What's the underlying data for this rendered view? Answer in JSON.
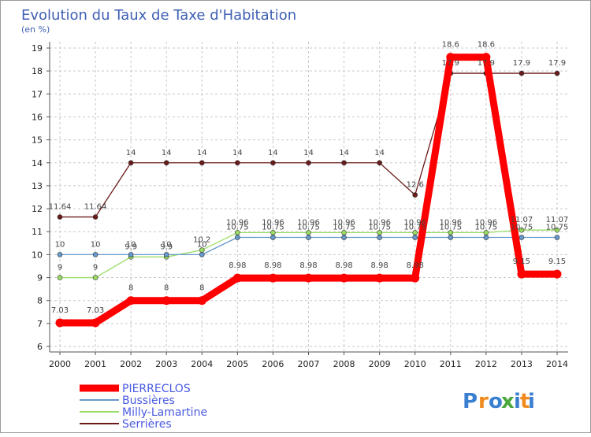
{
  "chart_data": {
    "type": "line",
    "title": "Evolution du Taux de Taxe d'Habitation",
    "ylabel": "(en %)",
    "xlabel": "",
    "ylim": [
      6,
      19
    ],
    "yticks": [
      6,
      7,
      8,
      9,
      10,
      11,
      12,
      13,
      14,
      15,
      16,
      17,
      18,
      19
    ],
    "categories": [
      "2000",
      "2001",
      "2002",
      "2003",
      "2004",
      "2005",
      "2006",
      "2007",
      "2008",
      "2009",
      "2010",
      "2011",
      "2012",
      "2013",
      "2014"
    ],
    "series": [
      {
        "name": "PIERRECLOS",
        "color": "#ff0000",
        "width": 9,
        "values": [
          7.03,
          7.03,
          8,
          8,
          8,
          8.98,
          8.98,
          8.98,
          8.98,
          8.98,
          8.98,
          18.6,
          18.6,
          9.15,
          9.15
        ],
        "labels": [
          "7.03",
          "7.03",
          "8",
          "8",
          "8",
          "8.98",
          "8.98",
          "8.98",
          "8.98",
          "8.98",
          "8.98",
          "18.6",
          "18.6",
          "9.15",
          "9.15"
        ]
      },
      {
        "name": "Bussières",
        "color": "#6699cc",
        "width": 1.3,
        "values": [
          10,
          10,
          10,
          10,
          10,
          10.75,
          10.75,
          10.75,
          10.75,
          10.75,
          10.75,
          10.75,
          10.75,
          10.75,
          10.75
        ],
        "labels": [
          "10",
          "10",
          "10",
          "10",
          "10",
          "10.75",
          "10.75",
          "10.75",
          "10.75",
          "10.75",
          "10.75",
          "10.75",
          "10.75",
          "10.75",
          "10.75"
        ]
      },
      {
        "name": "Milly-Lamartine",
        "color": "#99dd66",
        "width": 1.3,
        "values": [
          9,
          9,
          9.9,
          9.9,
          10.2,
          10.96,
          10.96,
          10.96,
          10.96,
          10.96,
          10.96,
          10.96,
          10.96,
          11.07,
          11.07
        ],
        "labels": [
          "9",
          "9",
          "9.9",
          "9.9",
          "10.2",
          "10.96",
          "10.96",
          "10.96",
          "10.96",
          "10.96",
          "10.96",
          "10.96",
          "10.96",
          "11.07",
          "11.07"
        ]
      },
      {
        "name": "Serrières",
        "color": "#6b1a1a",
        "width": 1.3,
        "values": [
          11.64,
          11.64,
          14,
          14,
          14,
          14,
          14,
          14,
          14,
          14,
          12.6,
          17.9,
          17.9,
          17.9,
          17.9
        ],
        "labels": [
          "11.64",
          "11.64",
          "14",
          "14",
          "14",
          "14",
          "14",
          "14",
          "14",
          "14",
          "12.6",
          "17.9",
          "17.9",
          "17.9",
          "17.9"
        ]
      }
    ]
  },
  "logo": {
    "text": "Proxiti",
    "letters": [
      "P",
      "r",
      "o",
      "x",
      "i",
      "t",
      "i"
    ],
    "colors": [
      "#3a7fd0",
      "#f08a1c",
      "#3a7fd0",
      "#4aa83c",
      "#3a7fd0",
      "#f08a1c",
      "#3a7fd0"
    ]
  }
}
